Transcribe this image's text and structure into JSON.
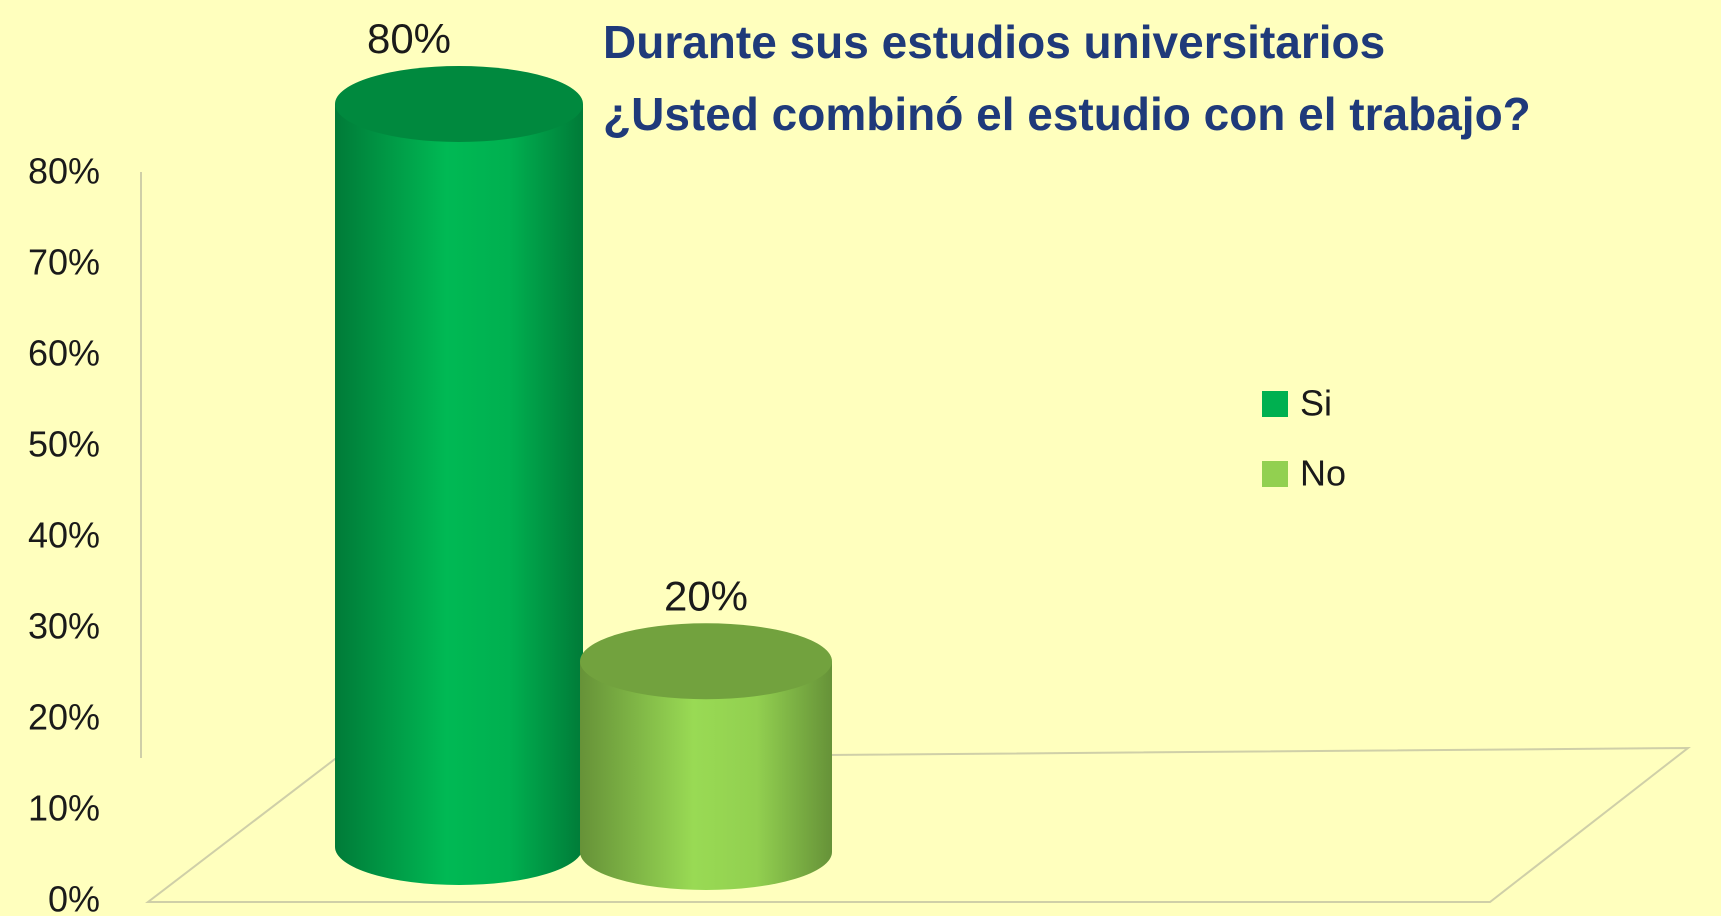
{
  "chart_data": {
    "type": "cylinder-bar",
    "title": [
      "Durante sus estudios universitarios",
      "¿Usted combinó el estudio con el trabajo?"
    ],
    "categories": [
      null
    ],
    "series": [
      {
        "name": "Si",
        "color": "#00b050",
        "values": [
          80
        ],
        "value_labels": [
          "80%"
        ]
      },
      {
        "name": "No",
        "color": "#92d050",
        "values": [
          20
        ],
        "value_labels": [
          "20%"
        ]
      }
    ],
    "ylim": [
      0,
      80
    ],
    "yticks": [
      {
        "value": 0,
        "label": "0%"
      },
      {
        "value": 10,
        "label": "10%"
      },
      {
        "value": 20,
        "label": "20%"
      },
      {
        "value": 30,
        "label": "30%"
      },
      {
        "value": 40,
        "label": "40%"
      },
      {
        "value": 50,
        "label": "50%"
      },
      {
        "value": 60,
        "label": "60%"
      },
      {
        "value": 70,
        "label": "70%"
      },
      {
        "value": 80,
        "label": "80%"
      }
    ],
    "legend": "right"
  }
}
